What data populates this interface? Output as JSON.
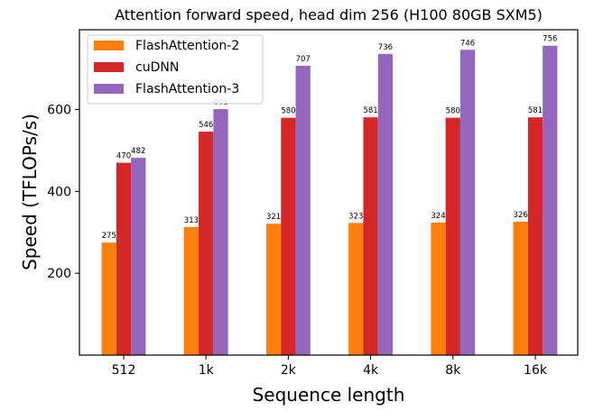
{
  "chart_data": {
    "type": "bar",
    "title": "Attention forward speed, head dim 256 (H100 80GB SXM5)",
    "xlabel": "Sequence length",
    "ylabel": "Speed (TFLOPs/s)",
    "categories": [
      "512",
      "1k",
      "2k",
      "4k",
      "8k",
      "16k"
    ],
    "ylim": [
      0,
      795
    ],
    "yticks": [
      200,
      400,
      600
    ],
    "grid": false,
    "legend_position": "top-left",
    "series": [
      {
        "name": "FlashAttention-2",
        "color": "#ff7f0e",
        "values": [
          275,
          313,
          321,
          323,
          324,
          326
        ]
      },
      {
        "name": "cuDNN",
        "color": "#d62728",
        "values": [
          470,
          546,
          580,
          581,
          580,
          581
        ]
      },
      {
        "name": "FlashAttention-3",
        "color": "#9467bd",
        "values": [
          482,
          601,
          707,
          736,
          746,
          756
        ]
      }
    ]
  }
}
